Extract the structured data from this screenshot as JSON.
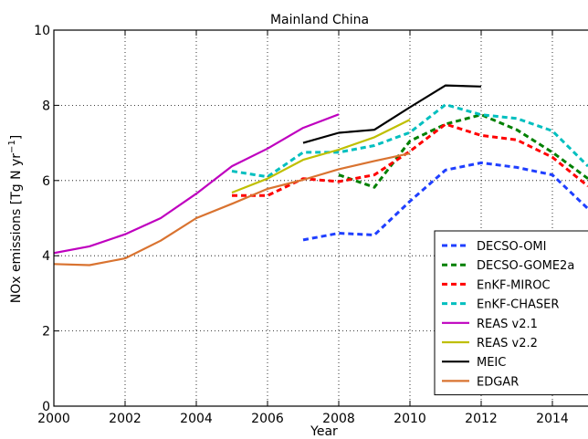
{
  "chart_data": {
    "type": "line",
    "title": "Mainland China",
    "xlabel": "Year",
    "ylabel": "NOx emissions [Tg N yr",
    "ylabel_superscript": "−1",
    "ylabel_suffix": "]",
    "xlim": [
      2000,
      2015
    ],
    "ylim": [
      0,
      10
    ],
    "xticks": [
      2000,
      2002,
      2004,
      2006,
      2008,
      2010,
      2012,
      2014
    ],
    "xtick_labels": [
      "2000",
      "2002",
      "2004",
      "2006",
      "2008",
      "2010",
      "2012",
      "2014"
    ],
    "yticks": [
      0,
      2,
      4,
      6,
      8,
      10
    ],
    "ytick_labels": [
      "0",
      "2",
      "4",
      "6",
      "8",
      "10"
    ],
    "grid": true,
    "legend_position": "lower-right",
    "series": [
      {
        "name": "DECSO-OMI",
        "color": "#1f3fff",
        "dash": "dashed",
        "x": [
          2007,
          2008,
          2009,
          2010,
          2011,
          2012,
          2013,
          2014,
          2015
        ],
        "y": [
          4.42,
          4.6,
          4.55,
          5.45,
          6.28,
          6.47,
          6.35,
          6.15,
          5.25
        ]
      },
      {
        "name": "DECSO-GOME2a",
        "color": "#008000",
        "dash": "dashed",
        "x": [
          2008,
          2009,
          2010,
          2011,
          2012,
          2013,
          2014,
          2015
        ],
        "y": [
          6.15,
          5.82,
          7.05,
          7.5,
          7.75,
          7.35,
          6.75,
          6.05
        ]
      },
      {
        "name": "EnKF-MIROC",
        "color": "#ff0000",
        "dash": "dashed",
        "x": [
          2005,
          2006,
          2007,
          2008,
          2009,
          2010,
          2011,
          2012,
          2013,
          2014,
          2015
        ],
        "y": [
          5.6,
          5.6,
          6.05,
          5.97,
          6.15,
          6.78,
          7.5,
          7.2,
          7.08,
          6.62,
          5.85
        ]
      },
      {
        "name": "EnKF-CHASER",
        "color": "#00bfbf",
        "dash": "dashed",
        "x": [
          2005,
          2006,
          2007,
          2008,
          2009,
          2010,
          2011,
          2012,
          2013,
          2014,
          2015
        ],
        "y": [
          6.25,
          6.1,
          6.75,
          6.75,
          6.93,
          7.28,
          8.02,
          7.75,
          7.65,
          7.32,
          6.38
        ]
      },
      {
        "name": "REAS v2.1",
        "color": "#bf00bf",
        "dash": "solid",
        "x": [
          2000,
          2001,
          2002,
          2003,
          2004,
          2005,
          2006,
          2007,
          2008
        ],
        "y": [
          4.07,
          4.25,
          4.57,
          5.0,
          5.65,
          6.38,
          6.85,
          7.4,
          7.76
        ]
      },
      {
        "name": "REAS v2.2",
        "color": "#bfbf00",
        "dash": "solid",
        "x": [
          2005,
          2006,
          2007,
          2008,
          2009,
          2010
        ],
        "y": [
          5.68,
          6.05,
          6.55,
          6.82,
          7.15,
          7.62
        ]
      },
      {
        "name": "MEIC",
        "color": "#000000",
        "dash": "solid",
        "x": [
          2007,
          2008,
          2009,
          2010,
          2011,
          2012
        ],
        "y": [
          7.0,
          7.27,
          7.35,
          7.95,
          8.53,
          8.5
        ]
      },
      {
        "name": "EDGAR",
        "color": "#d97330",
        "dash": "solid",
        "x": [
          2000,
          2001,
          2002,
          2003,
          2004,
          2005,
          2006,
          2007,
          2008,
          2009,
          2010
        ],
        "y": [
          3.78,
          3.75,
          3.93,
          4.4,
          5.0,
          5.38,
          5.78,
          6.02,
          6.3,
          6.52,
          6.72
        ]
      }
    ]
  }
}
